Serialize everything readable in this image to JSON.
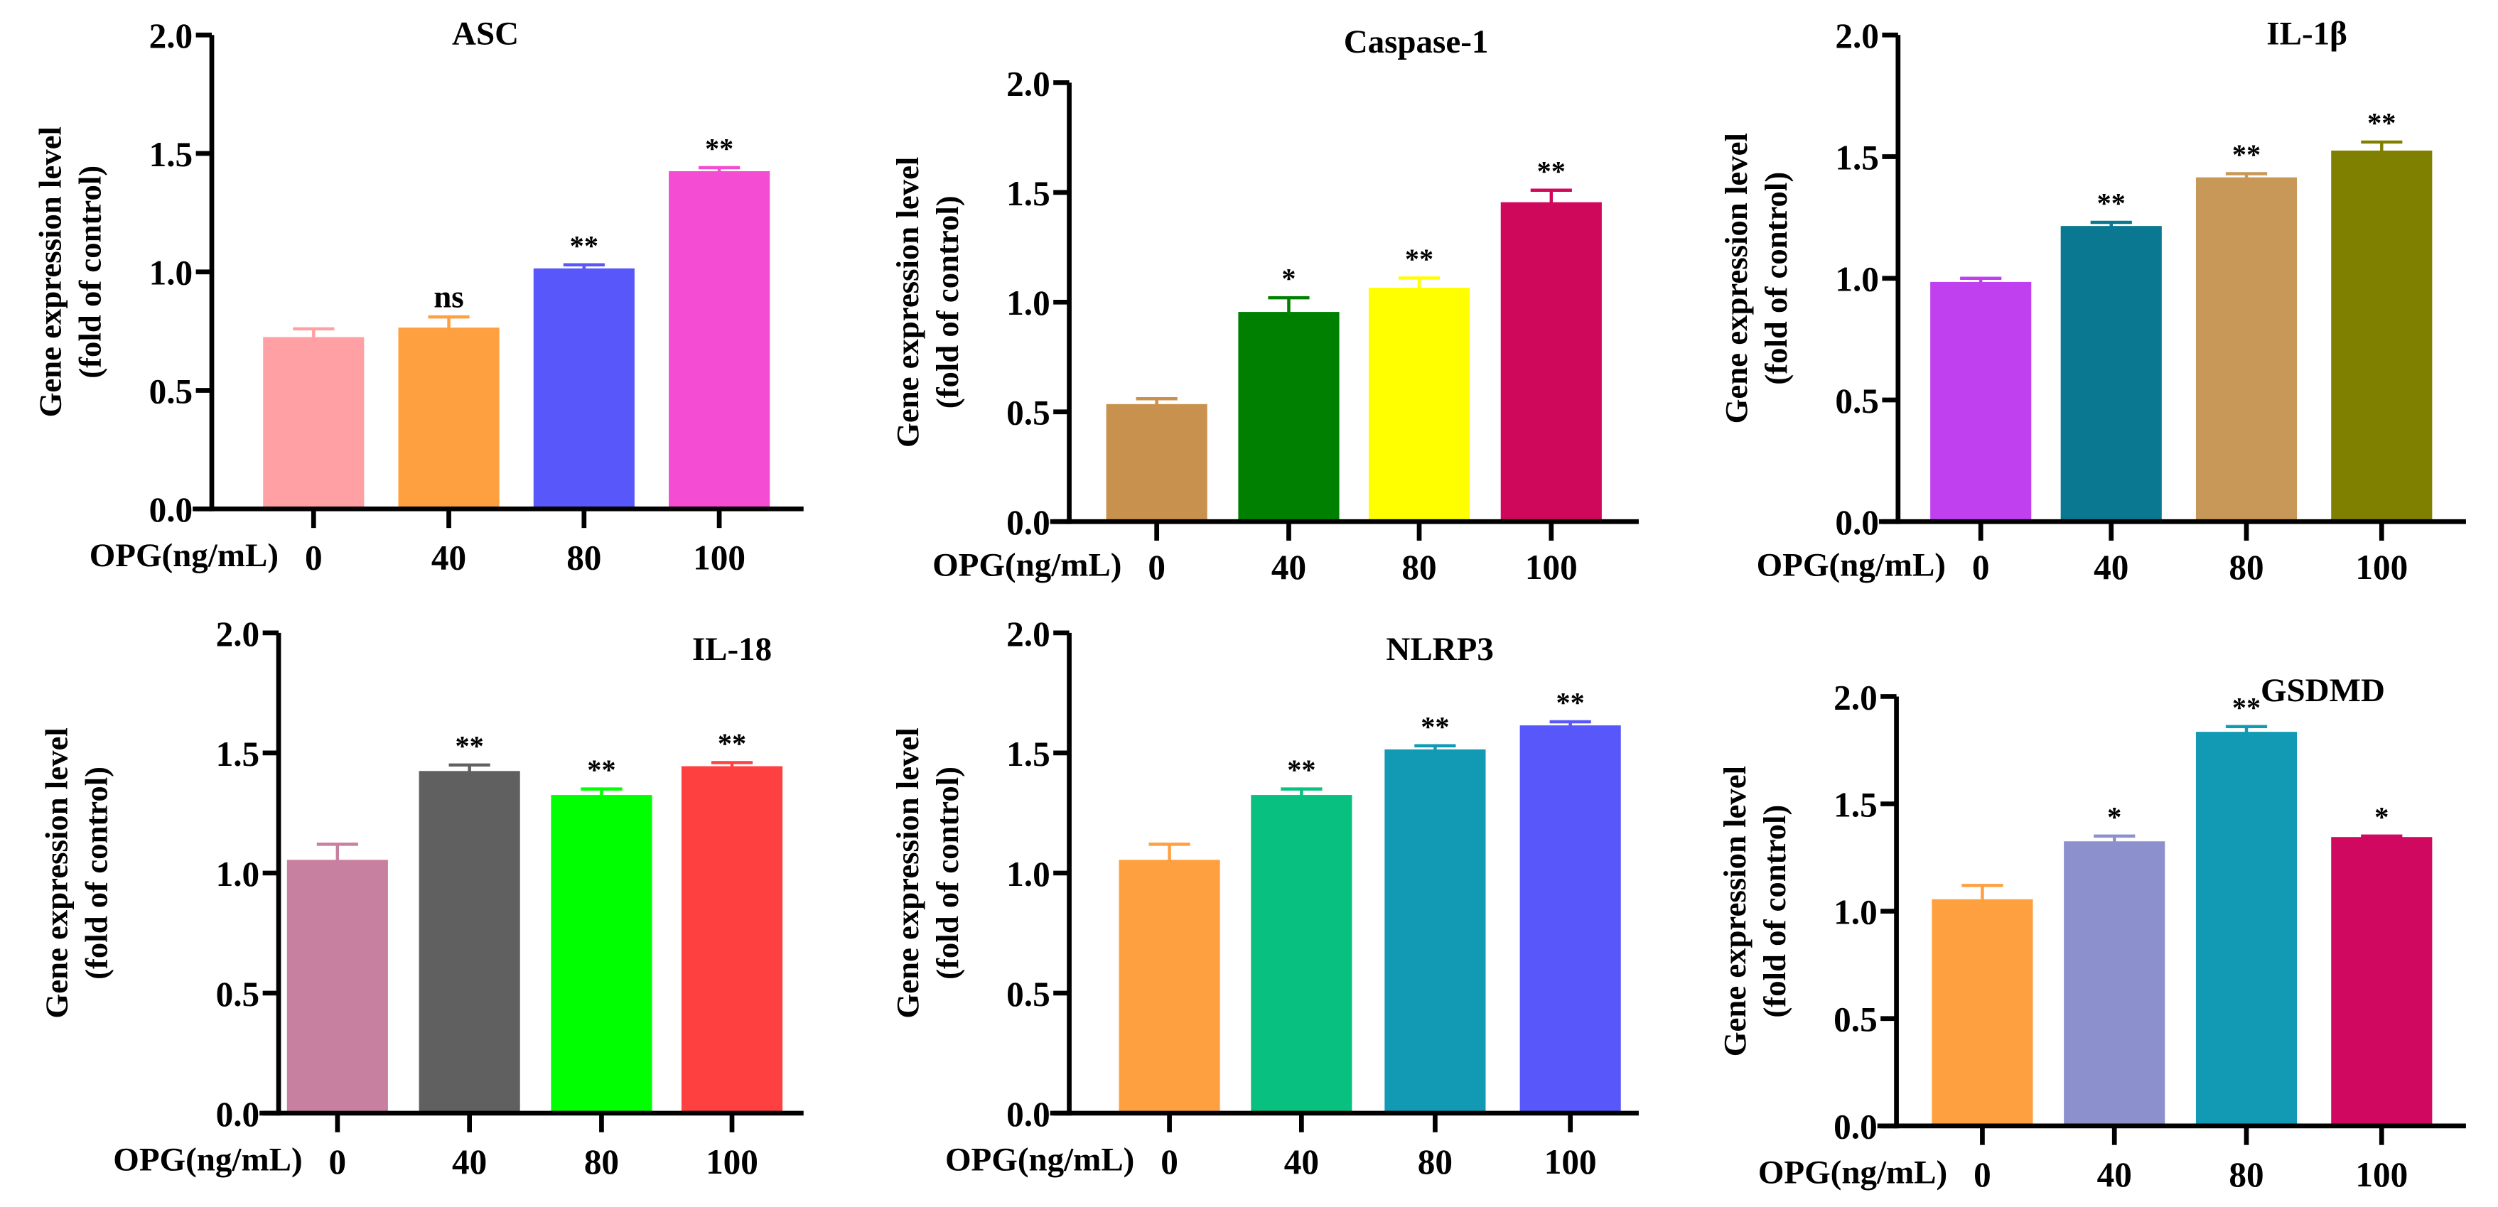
{
  "chart_data": [
    {
      "type": "bar",
      "title": "ASC",
      "ylabel_line1": "Gene expression level",
      "ylabel_line2": "(fold of control)",
      "xlabel": "OPG(ng/mL)",
      "categories": [
        "0",
        "40",
        "80",
        "100"
      ],
      "values": [
        0.72,
        0.76,
        1.01,
        1.42
      ],
      "errors": [
        0.04,
        0.05,
        0.02,
        0.02
      ],
      "significance": [
        "",
        "ns",
        "**",
        "**"
      ],
      "colors": [
        "#FFA0A4",
        "#FFA040",
        "#5858FA",
        "#F54CD4"
      ],
      "ylim": [
        0,
        2.0
      ],
      "yticks": [
        "0.0",
        "0.5",
        "1.0",
        "1.5",
        "2.0"
      ]
    },
    {
      "type": "bar",
      "title": "Caspase-1",
      "ylabel_line1": "Gene expression level",
      "ylabel_line2": "(fold of control)",
      "xlabel": "OPG(ng/mL)",
      "categories": [
        "0",
        "40",
        "80",
        "100"
      ],
      "values": [
        0.53,
        0.95,
        1.06,
        1.45
      ],
      "errors": [
        0.03,
        0.07,
        0.05,
        0.06
      ],
      "significance": [
        "",
        "*",
        "**",
        "**"
      ],
      "colors": [
        "#C8924E",
        "#008000",
        "#FFFF00",
        "#D0085C"
      ],
      "ylim": [
        0,
        2.0
      ],
      "yticks": [
        "0.0",
        "0.5",
        "1.0",
        "1.5",
        "2.0"
      ]
    },
    {
      "type": "bar",
      "title": "IL-1β",
      "ylabel_line1": "Gene expression level",
      "ylabel_line2": "(fold of control)",
      "xlabel": "OPG(ng/mL)",
      "categories": [
        "0",
        "40",
        "80",
        "100"
      ],
      "values": [
        0.98,
        1.21,
        1.41,
        1.52
      ],
      "errors": [
        0.02,
        0.02,
        0.02,
        0.04
      ],
      "significance": [
        "",
        "**",
        "**",
        "**"
      ],
      "colors": [
        "#C040F0",
        "#0A7890",
        "#C89858",
        "#808000"
      ],
      "ylim": [
        0,
        2.0
      ],
      "yticks": [
        "0.0",
        "0.5",
        "1.0",
        "1.5",
        "2.0"
      ]
    },
    {
      "type": "bar",
      "title": "IL-18",
      "ylabel_line1": "Gene expression level",
      "ylabel_line2": "(fold of control)",
      "xlabel": "OPG(ng/mL)",
      "categories": [
        "0",
        "40",
        "80",
        "100"
      ],
      "values": [
        1.05,
        1.42,
        1.32,
        1.44
      ],
      "errors": [
        0.07,
        0.03,
        0.03,
        0.02
      ],
      "significance": [
        "",
        "**",
        "**",
        "**"
      ],
      "colors": [
        "#C880A0",
        "#606060",
        "#00FF00",
        "#FF4040"
      ],
      "ylim": [
        0,
        2.0
      ],
      "yticks": [
        "0.0",
        "0.5",
        "1.0",
        "1.5",
        "2.0"
      ]
    },
    {
      "type": "bar",
      "title": "NLRP3",
      "ylabel_line1": "Gene expression level",
      "ylabel_line2": "(fold of control)",
      "xlabel": "OPG(ng/mL)",
      "categories": [
        "0",
        "40",
        "80",
        "100"
      ],
      "values": [
        1.05,
        1.32,
        1.51,
        1.61
      ],
      "errors": [
        0.07,
        0.03,
        0.02,
        0.02
      ],
      "significance": [
        "",
        "**",
        "**",
        "**"
      ],
      "colors": [
        "#FFA040",
        "#08C080",
        "#129AB4",
        "#5858FA"
      ],
      "ylim": [
        0,
        2.0
      ],
      "yticks": [
        "0.0",
        "0.5",
        "1.0",
        "1.5",
        "2.0"
      ]
    },
    {
      "type": "bar",
      "title": "GSDMD",
      "ylabel_line1": "Gene expression level",
      "ylabel_line2": "(fold of control)",
      "xlabel": "OPG(ng/mL)",
      "categories": [
        "0",
        "40",
        "80",
        "100"
      ],
      "values": [
        1.05,
        1.32,
        1.83,
        1.34
      ],
      "errors": [
        0.07,
        0.03,
        0.03,
        0.01
      ],
      "significance": [
        "",
        "*",
        "**",
        "*"
      ],
      "colors": [
        "#FFA040",
        "#8C90CC",
        "#129AB4",
        "#D00860"
      ],
      "ylim": [
        0,
        2.0
      ],
      "yticks": [
        "0.0",
        "0.5",
        "1.0",
        "1.5",
        "2.0"
      ]
    }
  ]
}
